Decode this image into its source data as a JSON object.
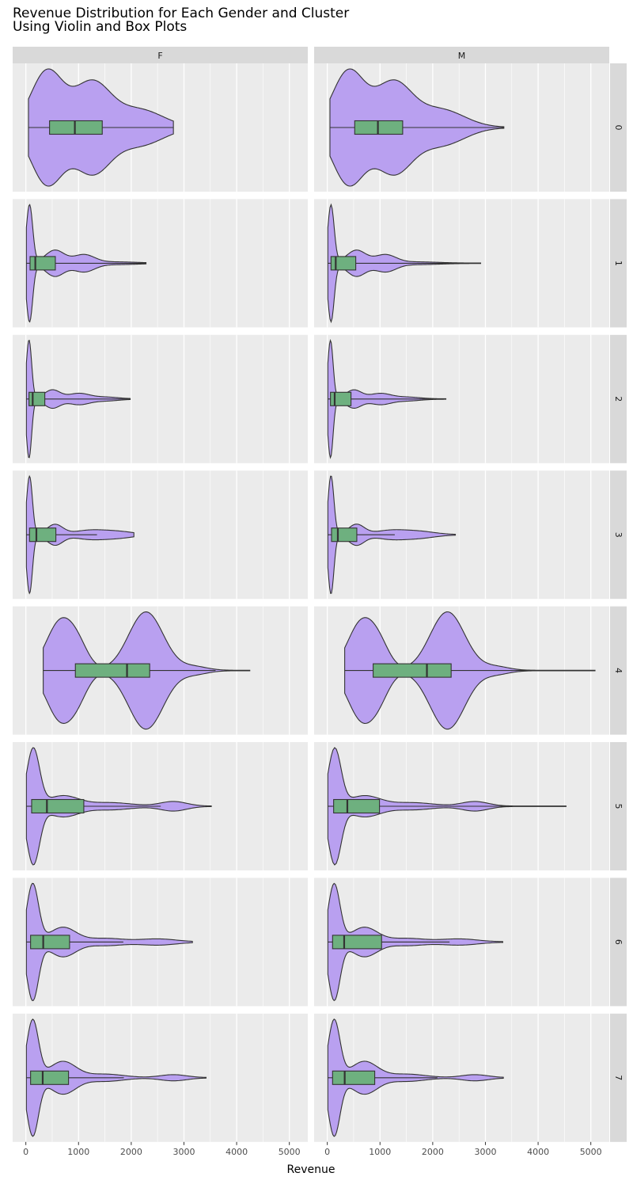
{
  "chart_data": {
    "type": "violin",
    "title_line1": "Revenue Distribution for Each Gender and Cluster",
    "title_line2": "Using Violin and Box Plots",
    "xlabel": "Revenue",
    "xlim": [
      -250,
      5350
    ],
    "xticks": [
      0,
      1000,
      2000,
      3000,
      4000,
      5000
    ],
    "xtick_labels": [
      "0",
      "1000",
      "2000",
      "3000",
      "4000",
      "5000"
    ],
    "columns": [
      "F",
      "M"
    ],
    "rows": [
      "0",
      "1",
      "2",
      "3",
      "4",
      "5",
      "6",
      "7"
    ],
    "colors": {
      "violin_fill": "#b9a0f0",
      "box_fill": "#6eb07f",
      "panel_bg": "#ebebeb",
      "strip_bg": "#d9d9d9",
      "grid": "#ffffff",
      "outline": "#333333"
    },
    "panels": [
      {
        "gender": "F",
        "cluster": "0",
        "violin_min": 50,
        "violin_max": 2800,
        "box": {
          "whisker_low": 50,
          "q1": 450,
          "median": 930,
          "q3": 1450,
          "whisker_high": 2800
        }
      },
      {
        "gender": "M",
        "cluster": "0",
        "violin_min": 50,
        "violin_max": 3350,
        "box": {
          "whisker_low": 50,
          "q1": 520,
          "median": 960,
          "q3": 1430,
          "whisker_high": 3350
        }
      },
      {
        "gender": "F",
        "cluster": "1",
        "violin_min": 10,
        "violin_max": 2280,
        "box": {
          "whisker_low": 10,
          "q1": 80,
          "median": 180,
          "q3": 560,
          "whisker_high": 2280
        }
      },
      {
        "gender": "M",
        "cluster": "1",
        "violin_min": 10,
        "violin_max": 2910,
        "box": {
          "whisker_low": 10,
          "q1": 70,
          "median": 160,
          "q3": 540,
          "whisker_high": 2910
        }
      },
      {
        "gender": "F",
        "cluster": "2",
        "violin_min": 10,
        "violin_max": 1980,
        "box": {
          "whisker_low": 10,
          "q1": 60,
          "median": 130,
          "q3": 360,
          "whisker_high": 1980
        }
      },
      {
        "gender": "M",
        "cluster": "2",
        "violin_min": 10,
        "violin_max": 2250,
        "box": {
          "whisker_low": 10,
          "q1": 60,
          "median": 140,
          "q3": 450,
          "whisker_high": 2250
        }
      },
      {
        "gender": "F",
        "cluster": "3",
        "violin_min": 10,
        "violin_max": 2050,
        "box": {
          "whisker_low": 10,
          "q1": 70,
          "median": 200,
          "q3": 570,
          "whisker_high": 1350
        }
      },
      {
        "gender": "M",
        "cluster": "3",
        "violin_min": 10,
        "violin_max": 2430,
        "box": {
          "whisker_low": 10,
          "q1": 80,
          "median": 200,
          "q3": 560,
          "whisker_high": 1280
        }
      },
      {
        "gender": "F",
        "cluster": "4",
        "violin_min": 330,
        "violin_max": 4250,
        "box": {
          "whisker_low": 330,
          "q1": 940,
          "median": 1920,
          "q3": 2350,
          "whisker_high": 3600
        }
      },
      {
        "gender": "M",
        "cluster": "4",
        "violin_min": 330,
        "violin_max": 5080,
        "box": {
          "whisker_low": 330,
          "q1": 870,
          "median": 1890,
          "q3": 2350,
          "whisker_high": 5080
        }
      },
      {
        "gender": "F",
        "cluster": "5",
        "violin_min": 10,
        "violin_max": 3520,
        "box": {
          "whisker_low": 10,
          "q1": 110,
          "median": 400,
          "q3": 1100,
          "whisker_high": 2560
        }
      },
      {
        "gender": "M",
        "cluster": "5",
        "violin_min": 10,
        "violin_max": 4530,
        "box": {
          "whisker_low": 10,
          "q1": 120,
          "median": 380,
          "q3": 990,
          "whisker_high": 4530
        }
      },
      {
        "gender": "F",
        "cluster": "6",
        "violin_min": 10,
        "violin_max": 3160,
        "box": {
          "whisker_low": 10,
          "q1": 90,
          "median": 330,
          "q3": 830,
          "whisker_high": 1850
        }
      },
      {
        "gender": "M",
        "cluster": "6",
        "violin_min": 10,
        "violin_max": 3330,
        "box": {
          "whisker_low": 10,
          "q1": 100,
          "median": 320,
          "q3": 1030,
          "whisker_high": 2320
        }
      },
      {
        "gender": "F",
        "cluster": "7",
        "violin_min": 10,
        "violin_max": 3420,
        "box": {
          "whisker_low": 10,
          "q1": 90,
          "median": 320,
          "q3": 810,
          "whisker_high": 1860
        }
      },
      {
        "gender": "M",
        "cluster": "7",
        "violin_min": 10,
        "violin_max": 3340,
        "box": {
          "whisker_low": 10,
          "q1": 100,
          "median": 330,
          "q3": 900,
          "whisker_high": 2090
        }
      }
    ]
  }
}
